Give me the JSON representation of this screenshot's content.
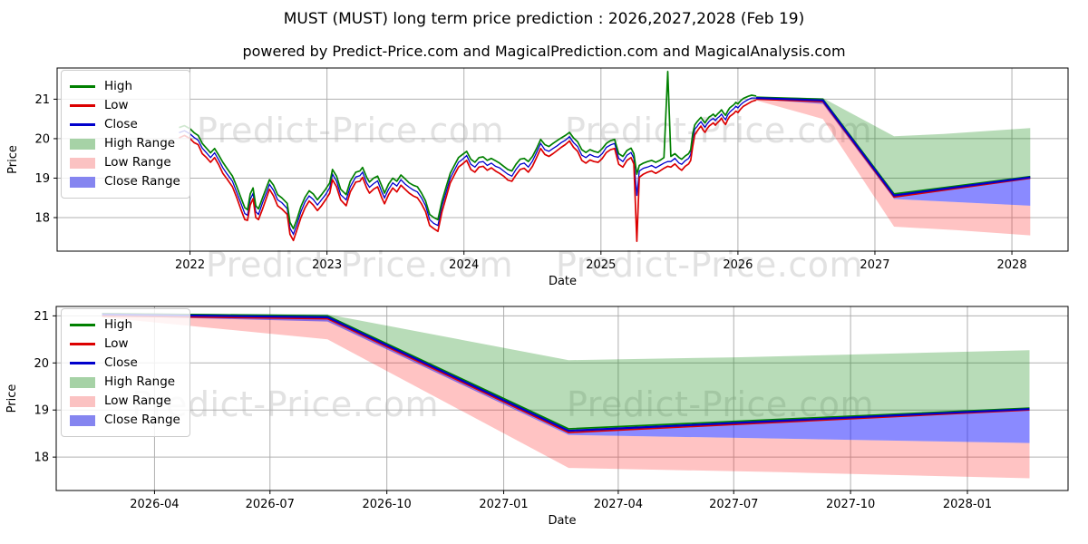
{
  "chart_data": {
    "type": "line",
    "title": "MUST (MUST) long term price prediction : 2026,2027,2028 (Feb 19)",
    "subtitle": "powered by Predict-Price.com and MagicalPrediction.com and MagicalAnalysis.com",
    "watermark_text": "Predict-Price.com",
    "colors": {
      "high_line": "#008000",
      "low_line": "#dc0000",
      "close_line": "#0000cc",
      "high_range_fill": "rgba(0,128,0,0.28)",
      "low_range_fill": "rgba(255,40,40,0.28)",
      "close_range_fill": "rgba(30,30,255,0.52)",
      "grid": "#b0b0b0",
      "spine": "#000000"
    },
    "legend": {
      "items": [
        {
          "label": "High",
          "swatch": "line",
          "color": "#008000"
        },
        {
          "label": "Low",
          "swatch": "line",
          "color": "#dc0000"
        },
        {
          "label": "Close",
          "swatch": "line",
          "color": "#0000cc"
        },
        {
          "label": "High Range",
          "swatch": "patch",
          "color": "#a6d2a6"
        },
        {
          "label": "Low Range",
          "swatch": "patch",
          "color": "#fbc2c2"
        },
        {
          "label": "Close Range",
          "swatch": "patch",
          "color": "#8585f0"
        }
      ]
    },
    "charts": [
      {
        "name": "overview",
        "xlabel": "Date",
        "ylabel": "Price",
        "xlim": [
          2021.03,
          2028.41
        ],
        "ylim": [
          17.15,
          21.79
        ],
        "yticks": [
          18,
          19,
          20,
          21
        ],
        "xticks": [
          {
            "x": 2022,
            "label": "2022"
          },
          {
            "x": 2023,
            "label": "2023"
          },
          {
            "x": 2024,
            "label": "2024"
          },
          {
            "x": 2025,
            "label": "2025"
          },
          {
            "x": 2026,
            "label": "2026"
          },
          {
            "x": 2027,
            "label": "2027"
          },
          {
            "x": 2028,
            "label": "2028"
          }
        ],
        "show_history": true,
        "show_prediction": true
      },
      {
        "name": "forecast",
        "xlabel": "Date",
        "ylabel": "Price",
        "xlim": [
          2026.035,
          2028.217
        ],
        "ylim": [
          17.29,
          21.2
        ],
        "yticks": [
          18,
          19,
          20,
          21
        ],
        "xticks": [
          {
            "x": 2026.247,
            "label": "2026-04"
          },
          {
            "x": 2026.496,
            "label": "2026-07"
          },
          {
            "x": 2026.748,
            "label": "2026-10"
          },
          {
            "x": 2027.0,
            "label": "2027-01"
          },
          {
            "x": 2027.247,
            "label": "2027-04"
          },
          {
            "x": 2027.496,
            "label": "2027-07"
          },
          {
            "x": 2027.748,
            "label": "2027-10"
          },
          {
            "x": 2028.0,
            "label": "2028-01"
          }
        ],
        "show_history": false,
        "show_prediction": true
      }
    ],
    "history": {
      "columns": [
        "date_decimal_year",
        "high",
        "low",
        "close"
      ],
      "points": [
        [
          2021.92,
          20.28,
          20.02,
          20.15
        ],
        [
          2021.96,
          20.33,
          20.08,
          20.2
        ],
        [
          2022.0,
          20.25,
          20.0,
          20.12
        ],
        [
          2022.03,
          20.15,
          19.9,
          20.03
        ],
        [
          2022.06,
          20.08,
          19.85,
          19.96
        ],
        [
          2022.09,
          19.88,
          19.62,
          19.76
        ],
        [
          2022.12,
          19.76,
          19.52,
          19.64
        ],
        [
          2022.15,
          19.64,
          19.4,
          19.52
        ],
        [
          2022.18,
          19.75,
          19.52,
          19.64
        ],
        [
          2022.21,
          19.58,
          19.34,
          19.46
        ],
        [
          2022.24,
          19.4,
          19.12,
          19.26
        ],
        [
          2022.27,
          19.25,
          18.98,
          19.11
        ],
        [
          2022.31,
          19.05,
          18.78,
          18.92
        ],
        [
          2022.34,
          18.8,
          18.52,
          18.65
        ],
        [
          2022.37,
          18.52,
          18.22,
          18.38
        ],
        [
          2022.4,
          18.25,
          17.95,
          18.1
        ],
        [
          2022.42,
          18.2,
          17.93,
          18.06
        ],
        [
          2022.44,
          18.6,
          18.32,
          18.46
        ],
        [
          2022.46,
          18.75,
          18.48,
          18.61
        ],
        [
          2022.48,
          18.3,
          18.0,
          18.15
        ],
        [
          2022.5,
          18.22,
          17.95,
          18.08
        ],
        [
          2022.53,
          18.5,
          18.22,
          18.38
        ],
        [
          2022.56,
          18.78,
          18.52,
          18.65
        ],
        [
          2022.58,
          18.96,
          18.72,
          18.84
        ],
        [
          2022.61,
          18.82,
          18.55,
          18.69
        ],
        [
          2022.64,
          18.58,
          18.3,
          18.45
        ],
        [
          2022.67,
          18.5,
          18.22,
          18.38
        ],
        [
          2022.71,
          18.36,
          18.08,
          18.23
        ],
        [
          2022.73,
          17.88,
          17.58,
          17.73
        ],
        [
          2022.755,
          17.72,
          17.42,
          17.58
        ],
        [
          2022.78,
          17.95,
          17.68,
          17.82
        ],
        [
          2022.81,
          18.28,
          18.0,
          18.15
        ],
        [
          2022.84,
          18.52,
          18.25,
          18.4
        ],
        [
          2022.87,
          18.68,
          18.42,
          18.55
        ],
        [
          2022.9,
          18.6,
          18.32,
          18.46
        ],
        [
          2022.93,
          18.45,
          18.18,
          18.32
        ],
        [
          2022.96,
          18.58,
          18.3,
          18.45
        ],
        [
          2022.99,
          18.72,
          18.45,
          18.58
        ],
        [
          2023.02,
          18.88,
          18.62,
          18.76
        ],
        [
          2023.04,
          19.22,
          18.96,
          19.1
        ],
        [
          2023.07,
          19.05,
          18.78,
          18.92
        ],
        [
          2023.1,
          18.72,
          18.45,
          18.58
        ],
        [
          2023.14,
          18.58,
          18.3,
          18.45
        ],
        [
          2023.17,
          18.92,
          18.65,
          18.78
        ],
        [
          2023.21,
          19.15,
          18.9,
          19.03
        ],
        [
          2023.24,
          19.18,
          18.92,
          19.06
        ],
        [
          2023.26,
          19.27,
          19.02,
          19.15
        ],
        [
          2023.29,
          19.02,
          18.75,
          18.88
        ],
        [
          2023.31,
          18.9,
          18.62,
          18.77
        ],
        [
          2023.34,
          19.0,
          18.72,
          18.86
        ],
        [
          2023.37,
          19.05,
          18.78,
          18.93
        ],
        [
          2023.4,
          18.8,
          18.5,
          18.65
        ],
        [
          2023.42,
          18.62,
          18.35,
          18.5
        ],
        [
          2023.45,
          18.85,
          18.58,
          18.72
        ],
        [
          2023.48,
          19.0,
          18.75,
          18.88
        ],
        [
          2023.51,
          18.92,
          18.65,
          18.8
        ],
        [
          2023.54,
          19.08,
          18.82,
          18.96
        ],
        [
          2023.57,
          18.98,
          18.72,
          18.85
        ],
        [
          2023.6,
          18.88,
          18.62,
          18.77
        ],
        [
          2023.63,
          18.82,
          18.55,
          18.7
        ],
        [
          2023.66,
          18.78,
          18.5,
          18.65
        ],
        [
          2023.69,
          18.62,
          18.35,
          18.5
        ],
        [
          2023.72,
          18.42,
          18.15,
          18.3
        ],
        [
          2023.75,
          18.08,
          17.8,
          17.95
        ],
        [
          2023.78,
          18.0,
          17.72,
          17.85
        ],
        [
          2023.81,
          17.95,
          17.65,
          17.8
        ],
        [
          2023.84,
          18.42,
          18.15,
          18.3
        ],
        [
          2023.87,
          18.78,
          18.52,
          18.65
        ],
        [
          2023.9,
          19.12,
          18.88,
          19.0
        ],
        [
          2023.93,
          19.32,
          19.08,
          19.2
        ],
        [
          2023.96,
          19.52,
          19.28,
          19.4
        ],
        [
          2023.99,
          19.6,
          19.36,
          19.48
        ],
        [
          2024.02,
          19.68,
          19.45,
          19.57
        ],
        [
          2024.05,
          19.48,
          19.22,
          19.35
        ],
        [
          2024.08,
          19.4,
          19.15,
          19.28
        ],
        [
          2024.11,
          19.52,
          19.28,
          19.4
        ],
        [
          2024.14,
          19.54,
          19.3,
          19.42
        ],
        [
          2024.17,
          19.45,
          19.2,
          19.32
        ],
        [
          2024.2,
          19.5,
          19.26,
          19.38
        ],
        [
          2024.23,
          19.44,
          19.18,
          19.3
        ],
        [
          2024.26,
          19.38,
          19.12,
          19.26
        ],
        [
          2024.29,
          19.3,
          19.05,
          19.18
        ],
        [
          2024.32,
          19.22,
          18.95,
          19.1
        ],
        [
          2024.35,
          19.18,
          18.92,
          19.05
        ],
        [
          2024.38,
          19.35,
          19.08,
          19.22
        ],
        [
          2024.41,
          19.48,
          19.22,
          19.35
        ],
        [
          2024.44,
          19.5,
          19.25,
          19.38
        ],
        [
          2024.47,
          19.42,
          19.15,
          19.28
        ],
        [
          2024.5,
          19.55,
          19.3,
          19.43
        ],
        [
          2024.53,
          19.75,
          19.52,
          19.65
        ],
        [
          2024.56,
          19.98,
          19.75,
          19.88
        ],
        [
          2024.59,
          19.85,
          19.6,
          19.72
        ],
        [
          2024.62,
          19.8,
          19.55,
          19.68
        ],
        [
          2024.65,
          19.88,
          19.62,
          19.75
        ],
        [
          2024.68,
          19.95,
          19.7,
          19.82
        ],
        [
          2024.71,
          20.02,
          19.78,
          19.9
        ],
        [
          2024.74,
          20.08,
          19.85,
          19.96
        ],
        [
          2024.77,
          20.16,
          19.94,
          20.05
        ],
        [
          2024.8,
          20.02,
          19.78,
          19.9
        ],
        [
          2024.83,
          19.92,
          19.68,
          19.8
        ],
        [
          2024.86,
          19.72,
          19.45,
          19.58
        ],
        [
          2024.89,
          19.65,
          19.38,
          19.52
        ],
        [
          2024.92,
          19.72,
          19.46,
          19.6
        ],
        [
          2024.95,
          19.68,
          19.42,
          19.55
        ],
        [
          2024.98,
          19.65,
          19.4,
          19.53
        ],
        [
          2025.01,
          19.75,
          19.5,
          19.62
        ],
        [
          2025.04,
          19.88,
          19.65,
          19.78
        ],
        [
          2025.07,
          19.95,
          19.72,
          19.84
        ],
        [
          2025.1,
          19.98,
          19.75,
          19.88
        ],
        [
          2025.13,
          19.62,
          19.35,
          19.5
        ],
        [
          2025.16,
          19.55,
          19.28,
          19.42
        ],
        [
          2025.19,
          19.7,
          19.45,
          19.58
        ],
        [
          2025.22,
          19.76,
          19.52,
          19.65
        ],
        [
          2025.24,
          19.62,
          19.36,
          19.5
        ],
        [
          2025.262,
          19.1,
          17.4,
          18.55
        ],
        [
          2025.28,
          19.32,
          19.02,
          19.18
        ],
        [
          2025.31,
          19.38,
          19.1,
          19.25
        ],
        [
          2025.34,
          19.42,
          19.15,
          19.28
        ],
        [
          2025.37,
          19.45,
          19.18,
          19.32
        ],
        [
          2025.4,
          19.4,
          19.12,
          19.26
        ],
        [
          2025.43,
          19.45,
          19.18,
          19.32
        ],
        [
          2025.46,
          19.52,
          19.25,
          19.38
        ],
        [
          2025.488,
          21.7,
          19.3,
          19.42
        ],
        [
          2025.51,
          19.55,
          19.28,
          19.42
        ],
        [
          2025.54,
          19.62,
          19.36,
          19.5
        ],
        [
          2025.57,
          19.52,
          19.25,
          19.38
        ],
        [
          2025.59,
          19.48,
          19.2,
          19.35
        ],
        [
          2025.615,
          19.56,
          19.3,
          19.44
        ],
        [
          2025.64,
          19.62,
          19.36,
          19.5
        ],
        [
          2025.655,
          19.72,
          19.45,
          19.6
        ],
        [
          2025.67,
          20.12,
          19.8,
          20.0
        ],
        [
          2025.685,
          20.35,
          20.1,
          20.24
        ],
        [
          2025.7,
          20.42,
          20.18,
          20.3
        ],
        [
          2025.715,
          20.48,
          20.25,
          20.37
        ],
        [
          2025.73,
          20.54,
          20.32,
          20.43
        ],
        [
          2025.745,
          20.46,
          20.22,
          20.35
        ],
        [
          2025.76,
          20.4,
          20.16,
          20.29
        ],
        [
          2025.775,
          20.48,
          20.25,
          20.37
        ],
        [
          2025.79,
          20.55,
          20.32,
          20.44
        ],
        [
          2025.805,
          20.58,
          20.36,
          20.48
        ],
        [
          2025.82,
          20.62,
          20.4,
          20.51
        ],
        [
          2025.835,
          20.56,
          20.34,
          20.46
        ],
        [
          2025.85,
          20.62,
          20.4,
          20.52
        ],
        [
          2025.865,
          20.67,
          20.45,
          20.56
        ],
        [
          2025.88,
          20.73,
          20.52,
          20.62
        ],
        [
          2025.895,
          20.65,
          20.42,
          20.54
        ],
        [
          2025.91,
          20.59,
          20.36,
          20.48
        ],
        [
          2025.925,
          20.7,
          20.48,
          20.6
        ],
        [
          2025.94,
          20.78,
          20.56,
          20.67
        ],
        [
          2025.955,
          20.82,
          20.6,
          20.72
        ],
        [
          2025.97,
          20.86,
          20.64,
          20.76
        ],
        [
          2025.985,
          20.92,
          20.7,
          20.82
        ],
        [
          2026.0,
          20.88,
          20.66,
          20.78
        ],
        [
          2026.02,
          20.96,
          20.75,
          20.86
        ],
        [
          2026.04,
          21.02,
          20.82,
          20.92
        ],
        [
          2026.06,
          21.05,
          20.86,
          20.96
        ],
        [
          2026.08,
          21.08,
          20.9,
          21.0
        ],
        [
          2026.1,
          21.1,
          20.94,
          21.03
        ],
        [
          2026.134,
          21.08,
          20.98,
          21.03
        ]
      ]
    },
    "prediction": {
      "close_line": [
        [
          2026.134,
          21.03
        ],
        [
          2026.62,
          20.97
        ],
        [
          2027.14,
          18.56
        ],
        [
          2028.134,
          19.02
        ]
      ],
      "high_line": [
        [
          2026.134,
          21.05
        ],
        [
          2026.62,
          21.0
        ],
        [
          2027.14,
          18.6
        ],
        [
          2028.134,
          19.04
        ]
      ],
      "low_line": [
        [
          2026.134,
          21.0
        ],
        [
          2026.62,
          20.94
        ],
        [
          2027.14,
          18.52
        ],
        [
          2028.134,
          19.0
        ]
      ],
      "high_range_top": [
        [
          2026.134,
          21.05
        ],
        [
          2026.62,
          21.03
        ],
        [
          2027.14,
          20.06
        ],
        [
          2027.5,
          20.12
        ],
        [
          2028.134,
          20.27
        ]
      ],
      "low_range_top": [
        [
          2026.134,
          21.0
        ],
        [
          2026.62,
          20.94
        ],
        [
          2027.14,
          18.47
        ],
        [
          2028.134,
          18.3
        ]
      ],
      "low_range_bottom": [
        [
          2026.134,
          20.97
        ],
        [
          2026.62,
          20.5
        ],
        [
          2027.14,
          17.77
        ],
        [
          2027.6,
          17.68
        ],
        [
          2028.134,
          17.55
        ]
      ],
      "close_range_top": [
        [
          2026.134,
          21.06
        ],
        [
          2026.62,
          21.02
        ],
        [
          2027.14,
          18.58
        ],
        [
          2028.134,
          19.02
        ]
      ],
      "close_range_bottom": [
        [
          2026.134,
          21.0
        ],
        [
          2026.62,
          20.88
        ],
        [
          2027.14,
          18.47
        ],
        [
          2028.134,
          18.3
        ]
      ]
    }
  }
}
